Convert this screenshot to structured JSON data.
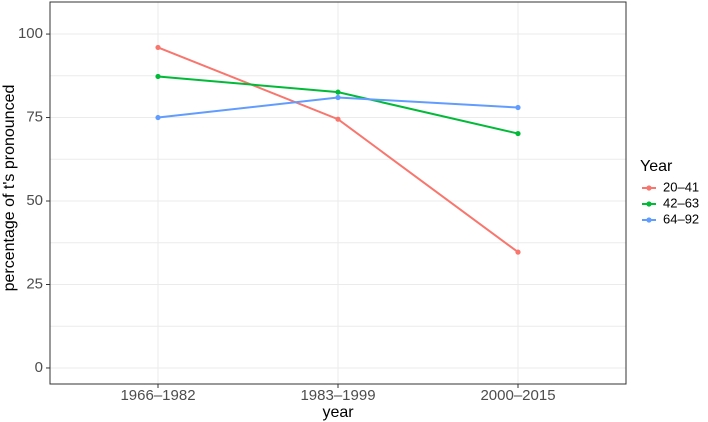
{
  "chart_data": {
    "type": "line",
    "x_label": "year",
    "y_label": "percentage of t's pronounced",
    "legend_title": "Year",
    "legend_position": "right",
    "categories": [
      "1966–1982",
      "1983–1999",
      "2000–2015"
    ],
    "series": [
      {
        "name": "20–41",
        "color": "#F8766D",
        "values": [
          96,
          74.5,
          34.7
        ]
      },
      {
        "name": "42–63",
        "color": "#00BA38",
        "values": [
          87.3,
          82.6,
          70.2
        ]
      },
      {
        "name": "64–92",
        "color": "#619CFF",
        "values": [
          75,
          81,
          78
        ]
      }
    ],
    "ylim": [
      -4.8,
      109.6
    ],
    "yticks": [
      0,
      25,
      50,
      75,
      100
    ],
    "grid": true
  }
}
